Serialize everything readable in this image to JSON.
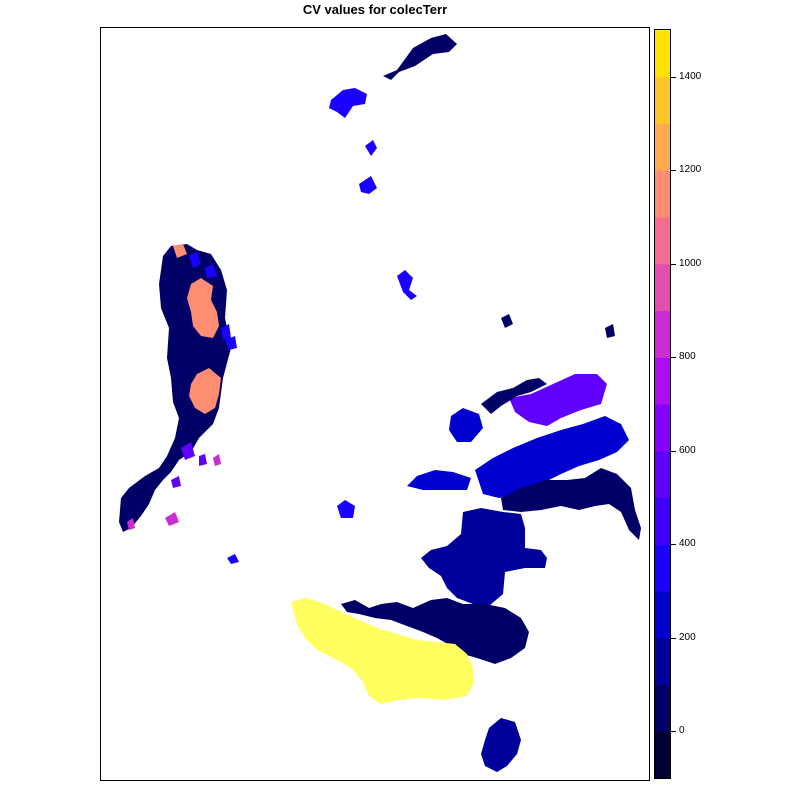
{
  "title": "CV values for colecTerr",
  "colorbar": {
    "min": -100,
    "max": 1500,
    "step": 100,
    "colors": [
      "#000033",
      "#000066",
      "#00009A",
      "#0000CF",
      "#1A00FF",
      "#3D00FF",
      "#6000FF",
      "#8700FF",
      "#AD0EF1",
      "#CB2DD2",
      "#E34FB1",
      "#F56E91",
      "#FF8D71",
      "#FFAA4F",
      "#FFC52B",
      "#FFE200",
      "#FFFF60"
    ],
    "tick_labels": [
      "0",
      "200",
      "400",
      "600",
      "800",
      "1000",
      "1200",
      "1400"
    ],
    "tick_values": [
      0,
      200,
      400,
      600,
      800,
      1000,
      1200,
      1400
    ]
  },
  "map": {
    "regions": [
      {
        "name": "north-island-top",
        "value": 50,
        "color": "#000066"
      },
      {
        "name": "north-island-b",
        "value": 300,
        "color": "#1A00FF"
      },
      {
        "name": "west-coast-salmon-upper",
        "value": 1050,
        "color": "#FF8D71"
      },
      {
        "name": "west-coast-salmon-lower",
        "value": 1100,
        "color": "#FF8D71"
      },
      {
        "name": "east-violet-large",
        "value": 500,
        "color": "#6000FF"
      },
      {
        "name": "east-blue-band",
        "value": 300,
        "color": "#0000CF"
      },
      {
        "name": "central-dark-large",
        "value": 100,
        "color": "#00009A"
      },
      {
        "name": "south-yellow",
        "value": 1500,
        "color": "#FFFF60"
      },
      {
        "name": "south-navy",
        "value": 50,
        "color": "#000066"
      },
      {
        "name": "south-tip",
        "value": 200,
        "color": "#00009A"
      }
    ]
  }
}
